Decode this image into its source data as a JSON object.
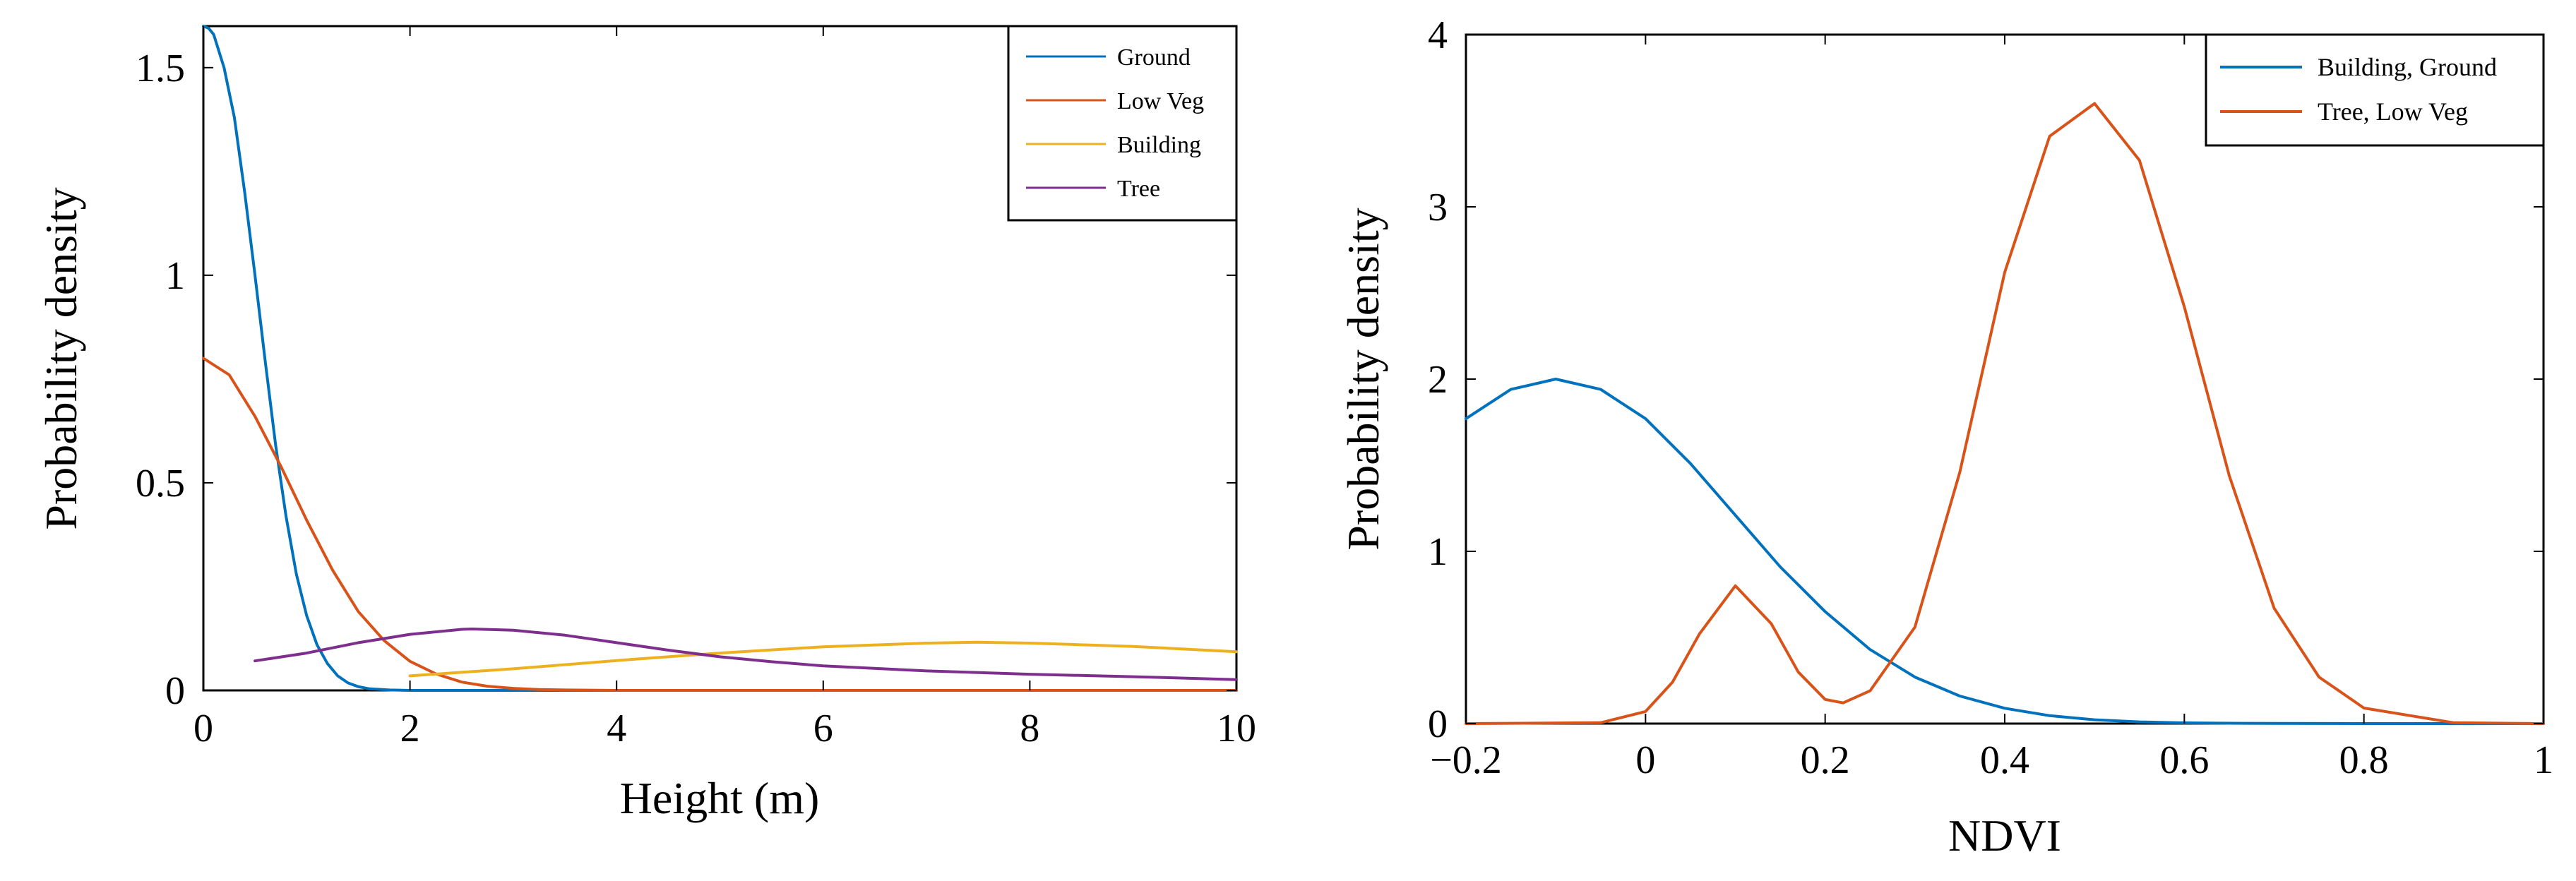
{
  "chart_data": [
    {
      "type": "line",
      "title": "",
      "xlabel": "Height (m)",
      "ylabel": "Probability density",
      "xlim": [
        0,
        10
      ],
      "ylim": [
        0,
        1.6
      ],
      "xticks": [
        0,
        2,
        4,
        6,
        8,
        10
      ],
      "xtick_labels": [
        "0",
        "2",
        "4",
        "6",
        "8",
        "10"
      ],
      "yticks": [
        0,
        0.5,
        1,
        1.5
      ],
      "ytick_labels": [
        "0",
        "0.5",
        "1",
        "1.5"
      ],
      "grid": false,
      "legend_position": "top-right",
      "series": [
        {
          "name": "Ground",
          "color": "#0072BD",
          "x": [
            0,
            0.05,
            0.1,
            0.2,
            0.3,
            0.4,
            0.5,
            0.6,
            0.7,
            0.8,
            0.9,
            1.0,
            1.1,
            1.2,
            1.3,
            1.4,
            1.5,
            1.6,
            1.8,
            2.0,
            2.5,
            3,
            4,
            6,
            8,
            10
          ],
          "y": [
            1.6,
            1.595,
            1.58,
            1.5,
            1.38,
            1.2,
            1.0,
            0.79,
            0.59,
            0.42,
            0.28,
            0.18,
            0.11,
            0.065,
            0.035,
            0.018,
            0.009,
            0.004,
            0.001,
            0.0,
            0.0,
            0.0,
            0.0,
            0.0,
            0.0,
            0.0
          ]
        },
        {
          "name": "Low Veg",
          "color": "#D95319",
          "x": [
            0,
            0.25,
            0.5,
            0.75,
            1.0,
            1.25,
            1.5,
            1.75,
            2.0,
            2.25,
            2.5,
            2.75,
            3.0,
            3.25,
            3.5,
            4,
            5,
            6,
            7,
            8,
            9,
            10
          ],
          "y": [
            0.8,
            0.76,
            0.66,
            0.54,
            0.41,
            0.29,
            0.19,
            0.12,
            0.07,
            0.04,
            0.02,
            0.01,
            0.005,
            0.002,
            0.001,
            0.0,
            0.0,
            0.0,
            0.0,
            0.0,
            0.0,
            0.0
          ]
        },
        {
          "name": "Building",
          "color": "#EDB120",
          "x": [
            2,
            3,
            4,
            5,
            6,
            7,
            7.5,
            8,
            9,
            10
          ],
          "y": [
            0.035,
            0.052,
            0.072,
            0.09,
            0.105,
            0.114,
            0.116,
            0.114,
            0.106,
            0.093
          ]
        },
        {
          "name": "Tree",
          "color": "#7E2F8E",
          "x": [
            0.5,
            1,
            1.5,
            2,
            2.5,
            2.6,
            3,
            3.5,
            4,
            4.5,
            5,
            5.5,
            6,
            7,
            8,
            9,
            10
          ],
          "y": [
            0.071,
            0.09,
            0.115,
            0.135,
            0.147,
            0.148,
            0.145,
            0.133,
            0.115,
            0.097,
            0.081,
            0.069,
            0.059,
            0.047,
            0.039,
            0.033,
            0.026
          ]
        }
      ]
    },
    {
      "type": "line",
      "title": "",
      "xlabel": "NDVI",
      "ylabel": "Probability density",
      "xlim": [
        -0.2,
        1.0
      ],
      "ylim": [
        0,
        4
      ],
      "xticks": [
        -0.2,
        0,
        0.2,
        0.4,
        0.6,
        0.8,
        1.0
      ],
      "xtick_labels": [
        "−0.2",
        "0",
        "0.2",
        "0.4",
        "0.6",
        "0.8",
        "1"
      ],
      "yticks": [
        0,
        1,
        2,
        3,
        4
      ],
      "ytick_labels": [
        "0",
        "1",
        "2",
        "3",
        "4"
      ],
      "grid": false,
      "legend_position": "top-right",
      "series": [
        {
          "name": "Building, Ground",
          "color": "#0072BD",
          "x": [
            -0.2,
            -0.15,
            -0.1,
            -0.05,
            0.0,
            0.05,
            0.1,
            0.15,
            0.2,
            0.25,
            0.3,
            0.35,
            0.4,
            0.45,
            0.5,
            0.55,
            0.6,
            0.65,
            0.7,
            0.8,
            0.9,
            1.0
          ],
          "y": [
            1.77,
            1.94,
            2.0,
            1.94,
            1.77,
            1.51,
            1.21,
            0.91,
            0.65,
            0.43,
            0.27,
            0.16,
            0.089,
            0.046,
            0.022,
            0.01,
            0.004,
            0.002,
            0.001,
            0.0,
            0.0,
            0.0
          ]
        },
        {
          "name": "Tree, Low Veg",
          "color": "#D95319",
          "x": [
            -0.2,
            -0.05,
            0.0,
            0.03,
            0.06,
            0.1,
            0.14,
            0.17,
            0.2,
            0.22,
            0.25,
            0.3,
            0.35,
            0.4,
            0.45,
            0.5,
            0.55,
            0.6,
            0.65,
            0.7,
            0.75,
            0.8,
            0.9,
            1.0
          ],
          "y": [
            0.0,
            0.005,
            0.07,
            0.24,
            0.52,
            0.8,
            0.58,
            0.3,
            0.14,
            0.12,
            0.19,
            0.56,
            1.46,
            2.62,
            3.41,
            3.6,
            3.27,
            2.42,
            1.44,
            0.67,
            0.27,
            0.09,
            0.005,
            0.0
          ]
        }
      ]
    }
  ]
}
